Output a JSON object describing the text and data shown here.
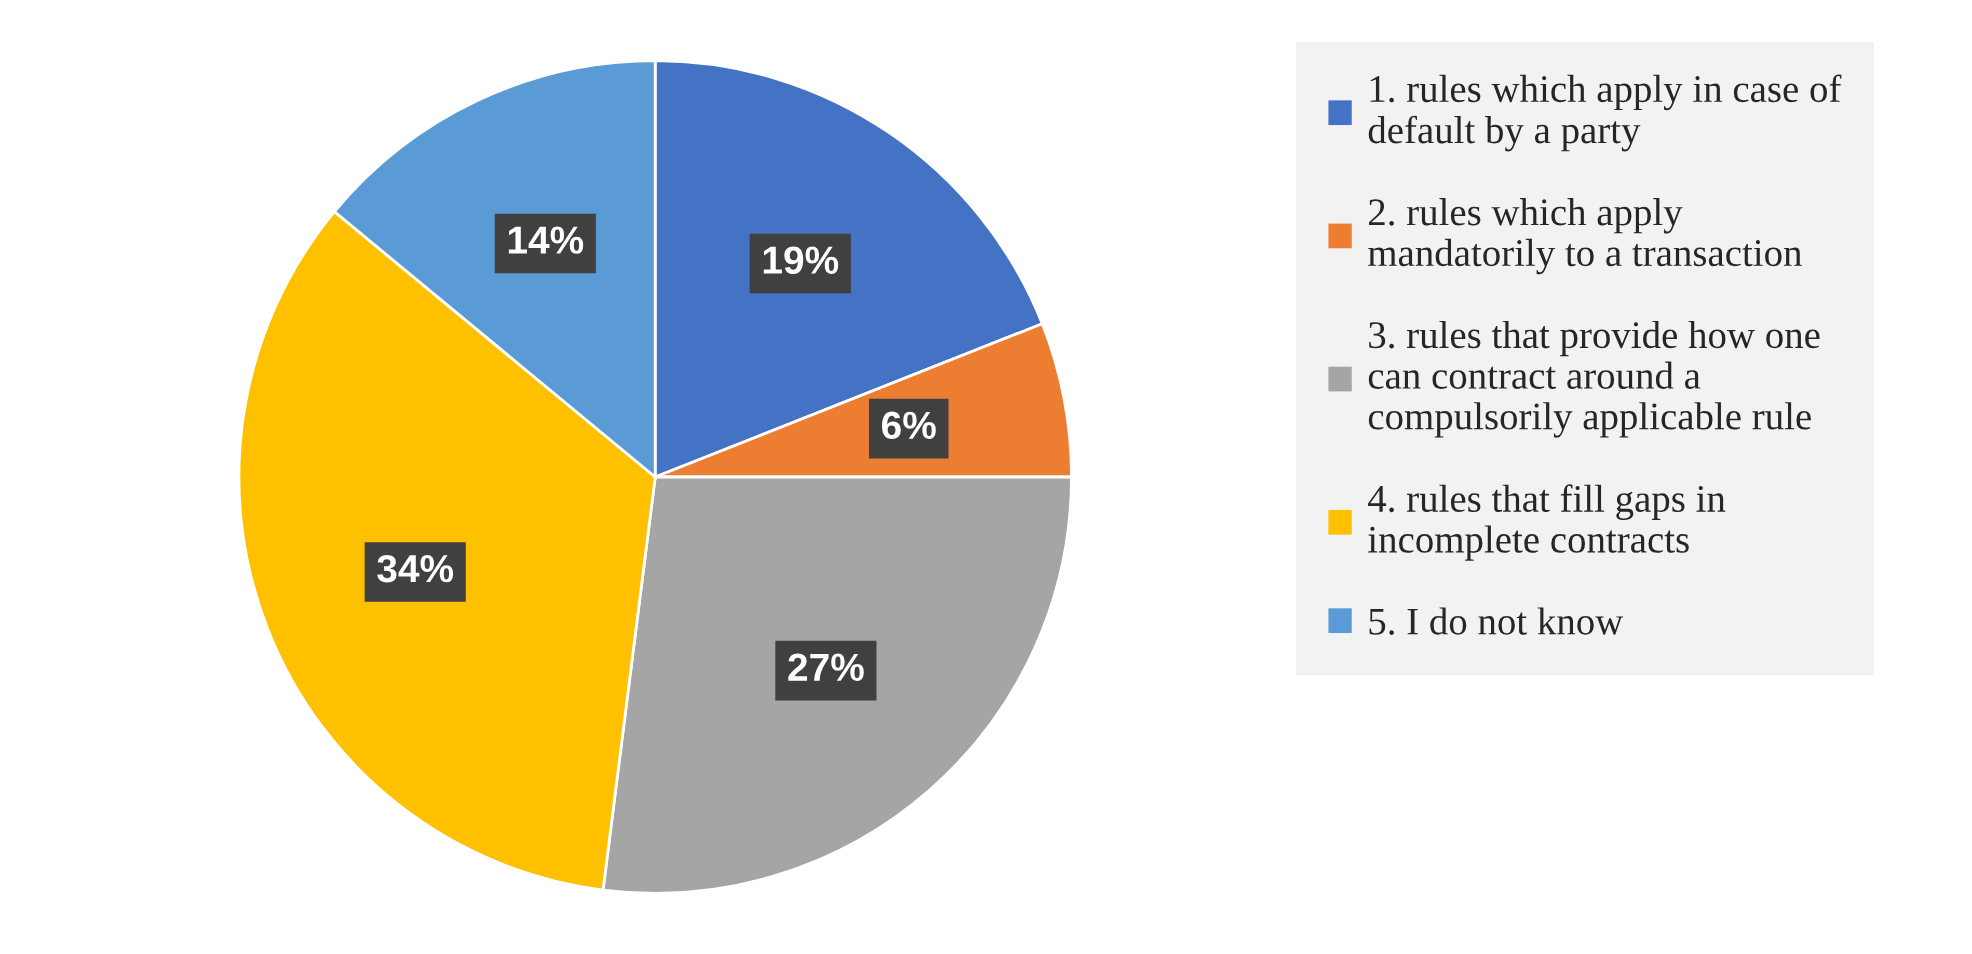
{
  "chart_data": {
    "type": "pie",
    "categories": [
      "1. rules which apply in case of\ndefault by a party",
      "2. rules which apply\nmandatorily to a transaction",
      "3. rules that provide how one\ncan contract around a\ncompulsorily applicable rule",
      "4. rules that fill gaps in\nincomplete contracts",
      "5. I do not know"
    ],
    "values": [
      19,
      6,
      27,
      34,
      14
    ],
    "colors": [
      "#4472c4",
      "#ed7d31",
      "#a5a5a5",
      "#ffc000",
      "#5b9bd5"
    ],
    "value_labels": [
      "19%",
      "6%",
      "27%",
      "34%",
      "14%"
    ],
    "legend": "right"
  }
}
